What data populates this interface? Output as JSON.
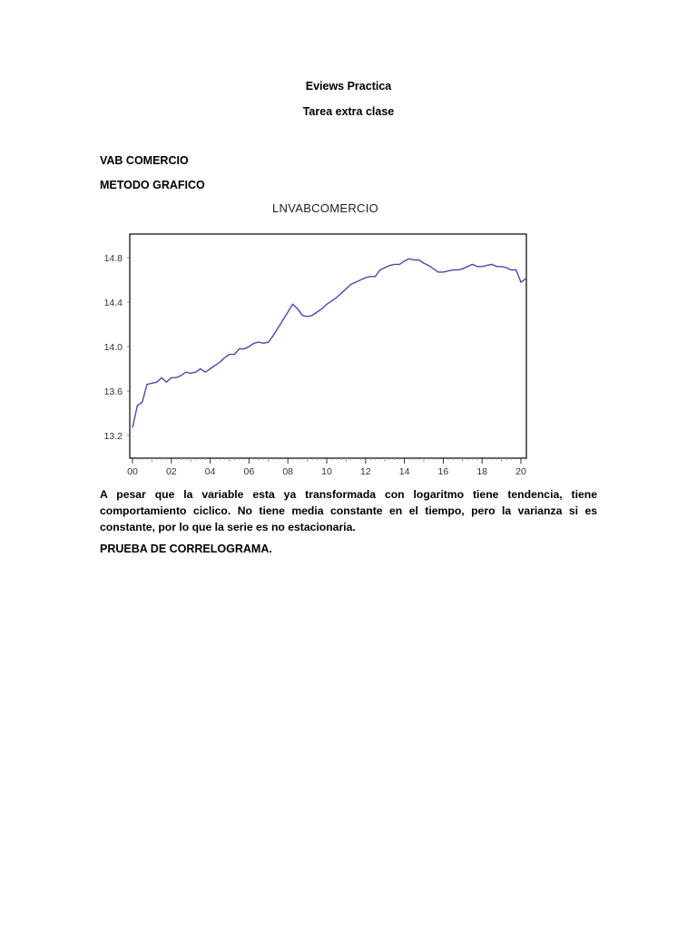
{
  "document": {
    "title": "Eviews Practica",
    "subtitle": "Tarea extra clase",
    "section_heading": "VAB COMERCIO",
    "method_heading": "METODO GRAFICO",
    "paragraph": "A pesar que la variable esta ya transformada con logaritmo tiene tendencia, tiene comportamiento ciclico.  No tiene media constante en el tiempo, pero la  varianza si es constante, por  lo que la serie es no estacionaria.",
    "next_heading": "PRUEBA DE CORRELOGRAMA."
  },
  "colors": {
    "line": "#4a4aa8",
    "frame": "#000000"
  },
  "chart_data": {
    "type": "line",
    "title": "LNVABCOMERCIO",
    "xlabel": "",
    "ylabel": "",
    "frequency": "quarterly",
    "x_start": "2000Q1",
    "x_end": "2020Q2",
    "xlim": [
      2000,
      2020.5
    ],
    "ylim": [
      13.0,
      15.0
    ],
    "yticks": [
      13.2,
      13.6,
      14.0,
      14.4,
      14.8
    ],
    "ytick_labels": [
      "13.2",
      "13.6",
      "14.0",
      "14.4",
      "14.8"
    ],
    "xtick_labels": [
      "00",
      "02",
      "04",
      "06",
      "08",
      "10",
      "12",
      "14",
      "16",
      "18",
      "20"
    ],
    "grid": false,
    "legend": "none",
    "series": [
      {
        "name": "LNVABCOMERCIO",
        "values": [
          13.27,
          13.47,
          13.5,
          13.66,
          13.67,
          13.68,
          13.72,
          13.68,
          13.72,
          13.72,
          13.74,
          13.77,
          13.76,
          13.77,
          13.8,
          13.77,
          13.8,
          13.83,
          13.86,
          13.9,
          13.93,
          13.93,
          13.98,
          13.98,
          14.0,
          14.03,
          14.04,
          14.03,
          14.04,
          14.1,
          14.17,
          14.24,
          14.31,
          14.38,
          14.34,
          14.28,
          14.27,
          14.28,
          14.31,
          14.34,
          14.38,
          14.41,
          14.44,
          14.48,
          14.52,
          14.56,
          14.58,
          14.6,
          14.62,
          14.63,
          14.63,
          14.69,
          14.71,
          14.73,
          14.74,
          14.74,
          14.77,
          14.79,
          14.78,
          14.78,
          14.75,
          14.73,
          14.7,
          14.67,
          14.67,
          14.68,
          14.69,
          14.69,
          14.7,
          14.72,
          14.74,
          14.72,
          14.72,
          14.73,
          14.74,
          14.72,
          14.72,
          14.71,
          14.69,
          14.69,
          14.58,
          14.61
        ]
      }
    ]
  }
}
